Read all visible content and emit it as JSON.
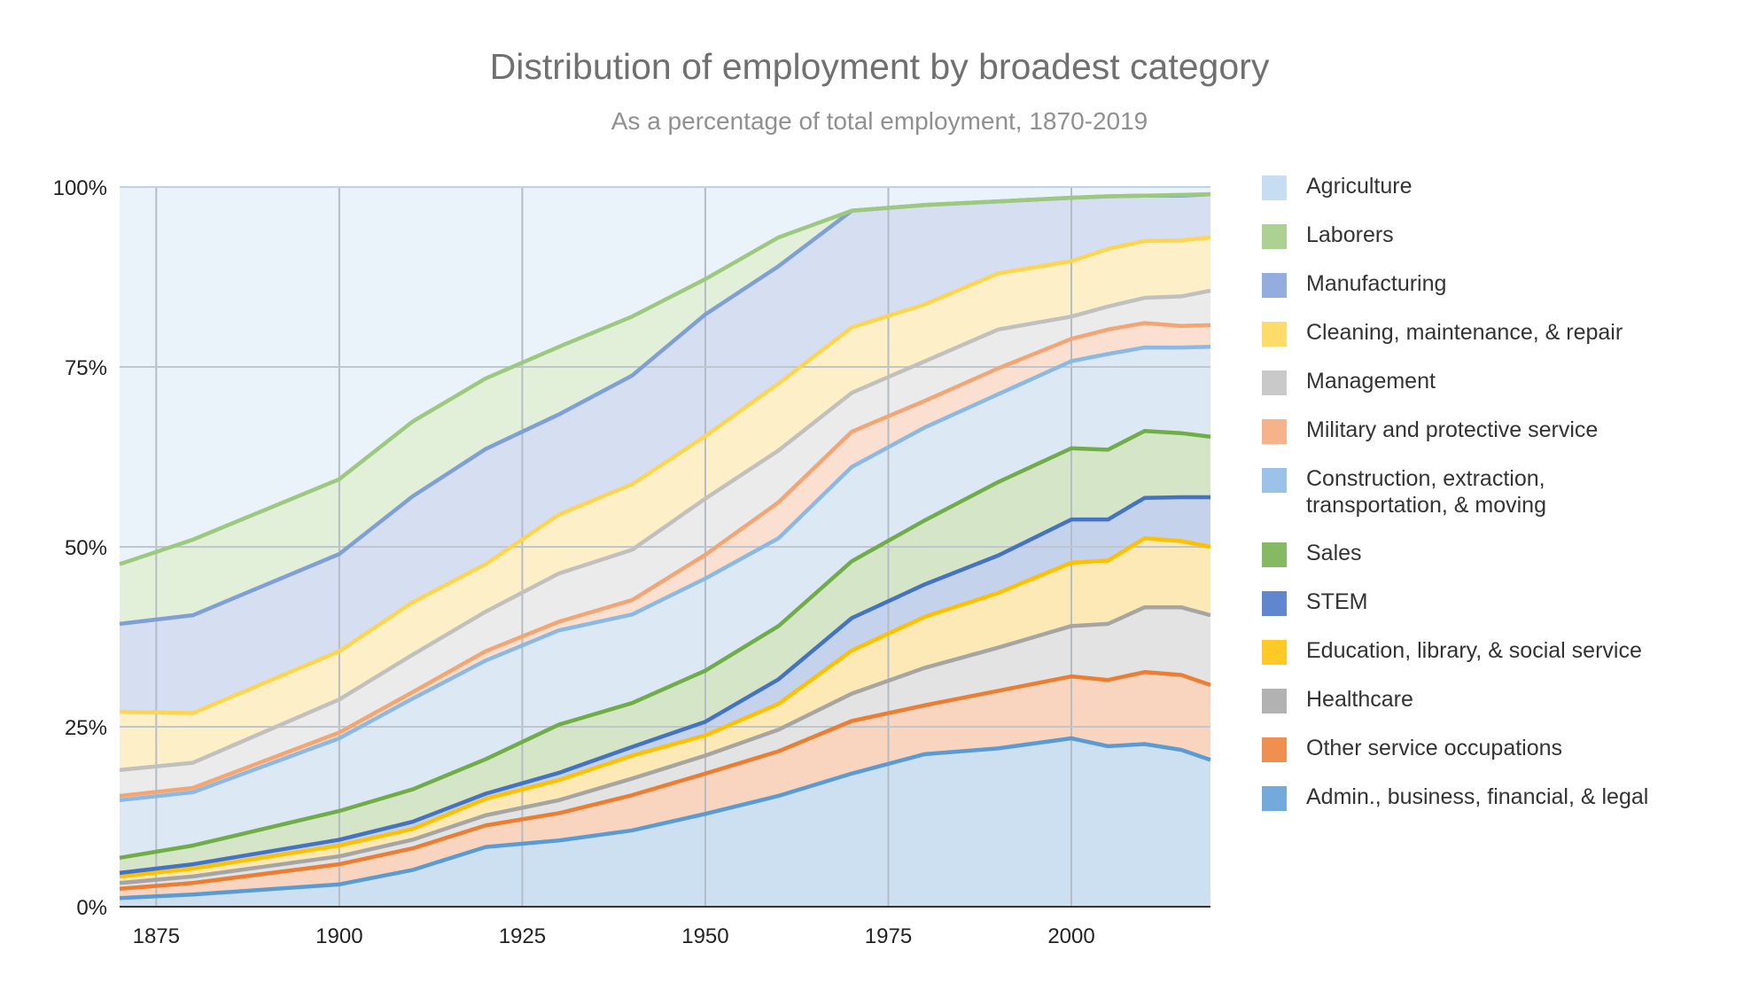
{
  "chart_data": {
    "type": "area",
    "stacked": true,
    "title": "Distribution of employment by broadest category",
    "subtitle": "As a percentage of total employment, 1870-2019",
    "xlabel": "",
    "ylabel": "",
    "xlim": [
      1870,
      2019
    ],
    "ylim": [
      0,
      100
    ],
    "x_ticks": [
      "1875",
      "1900",
      "1925",
      "1950",
      "1975",
      "2000"
    ],
    "y_ticks": [
      "0%",
      "25%",
      "50%",
      "75%",
      "100%"
    ],
    "grid": true,
    "legend_position": "right",
    "value_note": "cumulative stacked top of each series, percent",
    "x": [
      1870,
      1880,
      1900,
      1910,
      1920,
      1930,
      1940,
      1950,
      1960,
      1970,
      1980,
      1990,
      2000,
      2005,
      2010,
      2015,
      2019
    ],
    "series": [
      {
        "name": "Admin., business, financial, & legal",
        "color": "#5b9bd5",
        "fill": "#cde0f1",
        "stacked_top": [
          1.2,
          1.7,
          3.1,
          5.1,
          8.3,
          9.2,
          10.6,
          12.9,
          15.4,
          18.5,
          21.2,
          22.0,
          23.4,
          22.3,
          22.6,
          21.8,
          20.4
        ]
      },
      {
        "name": "Other service occupations",
        "color": "#ed7d31",
        "fill": "#f9d5c0",
        "stacked_top": [
          2.5,
          3.3,
          5.9,
          8.1,
          11.3,
          13.0,
          15.5,
          18.5,
          21.6,
          25.8,
          28.0,
          30.0,
          32.0,
          31.5,
          32.6,
          32.2,
          30.8
        ]
      },
      {
        "name": "Healthcare",
        "color": "#a5a5a5",
        "fill": "#e3e3e3",
        "stacked_top": [
          3.3,
          4.2,
          7.0,
          9.3,
          12.7,
          14.8,
          17.8,
          21.0,
          24.6,
          29.6,
          33.2,
          36.0,
          39.0,
          39.3,
          41.6,
          41.6,
          40.5
        ]
      },
      {
        "name": "Education, library, & social service",
        "color": "#ffc000",
        "fill": "#fde9b5",
        "stacked_top": [
          4.2,
          5.3,
          8.5,
          10.8,
          15.0,
          17.6,
          21.0,
          23.8,
          28.2,
          35.6,
          40.3,
          43.6,
          47.8,
          48.1,
          51.2,
          50.8,
          50.0
        ]
      },
      {
        "name": "STEM",
        "color": "#4472c4",
        "fill": "#c5d2ec",
        "stacked_top": [
          4.7,
          5.9,
          9.3,
          11.8,
          15.7,
          18.6,
          22.2,
          25.7,
          31.6,
          40.1,
          44.8,
          48.8,
          53.8,
          53.8,
          56.8,
          56.9,
          56.9
        ]
      },
      {
        "name": "Sales",
        "color": "#70ad47",
        "fill": "#d5e5c8",
        "stacked_top": [
          6.8,
          8.5,
          13.3,
          16.3,
          20.5,
          25.3,
          28.3,
          32.8,
          39.0,
          48.0,
          53.7,
          59.0,
          63.7,
          63.5,
          66.1,
          65.8,
          65.3
        ]
      },
      {
        "name": "Construction, extraction,\ntransportation, & moving",
        "color": "#8ab9e5",
        "fill": "#dce9f5",
        "stacked_top": [
          14.8,
          15.9,
          23.4,
          28.9,
          34.2,
          38.4,
          40.6,
          45.6,
          51.2,
          61.1,
          66.6,
          71.2,
          75.8,
          76.8,
          77.7,
          77.7,
          77.8
        ]
      },
      {
        "name": "Military and protective service",
        "color": "#f4a574",
        "fill": "#fbe0d2",
        "stacked_top": [
          15.4,
          16.5,
          24.2,
          29.8,
          35.5,
          39.6,
          42.6,
          48.9,
          56.2,
          66.0,
          70.3,
          74.8,
          78.9,
          80.2,
          81.1,
          80.7,
          80.8
        ]
      },
      {
        "name": "Management",
        "color": "#c0c0c0",
        "fill": "#ebebeb",
        "stacked_top": [
          19.0,
          20.0,
          28.8,
          35.0,
          41.0,
          46.3,
          49.6,
          56.7,
          63.4,
          71.4,
          75.8,
          80.2,
          82.0,
          83.4,
          84.6,
          84.8,
          85.6
        ]
      },
      {
        "name": "Cleaning, maintenance, & repair",
        "color": "#ffd54f",
        "fill": "#fdf0c8",
        "stacked_top": [
          27.1,
          26.9,
          35.5,
          42.3,
          47.6,
          54.5,
          58.7,
          65.4,
          72.7,
          80.5,
          83.7,
          88.0,
          89.7,
          91.4,
          92.5,
          92.6,
          93.0
        ]
      },
      {
        "name": "Manufacturing",
        "color": "#7f9fd8",
        "fill": "#d6dff2",
        "stacked_top": [
          39.3,
          40.5,
          49.0,
          57.0,
          63.6,
          68.4,
          73.8,
          82.3,
          89.0,
          96.7,
          97.5,
          98.0,
          98.5,
          98.7,
          98.8,
          98.8,
          99.0
        ]
      },
      {
        "name": "Laborers",
        "color": "#9dc97f",
        "fill": "#e2efd9",
        "stacked_top": [
          47.6,
          51.0,
          59.4,
          67.4,
          73.4,
          77.8,
          82.0,
          87.2,
          93.0,
          96.7,
          97.5,
          98.0,
          98.5,
          98.7,
          98.8,
          98.9,
          99.0
        ]
      },
      {
        "name": "Agriculture",
        "color": "#bdd7ee",
        "fill": "#eaf2fa",
        "stacked_top": [
          100,
          100,
          100,
          100,
          100,
          100,
          100,
          100,
          100,
          100,
          100,
          100,
          100,
          100,
          100,
          100,
          100
        ]
      }
    ]
  }
}
